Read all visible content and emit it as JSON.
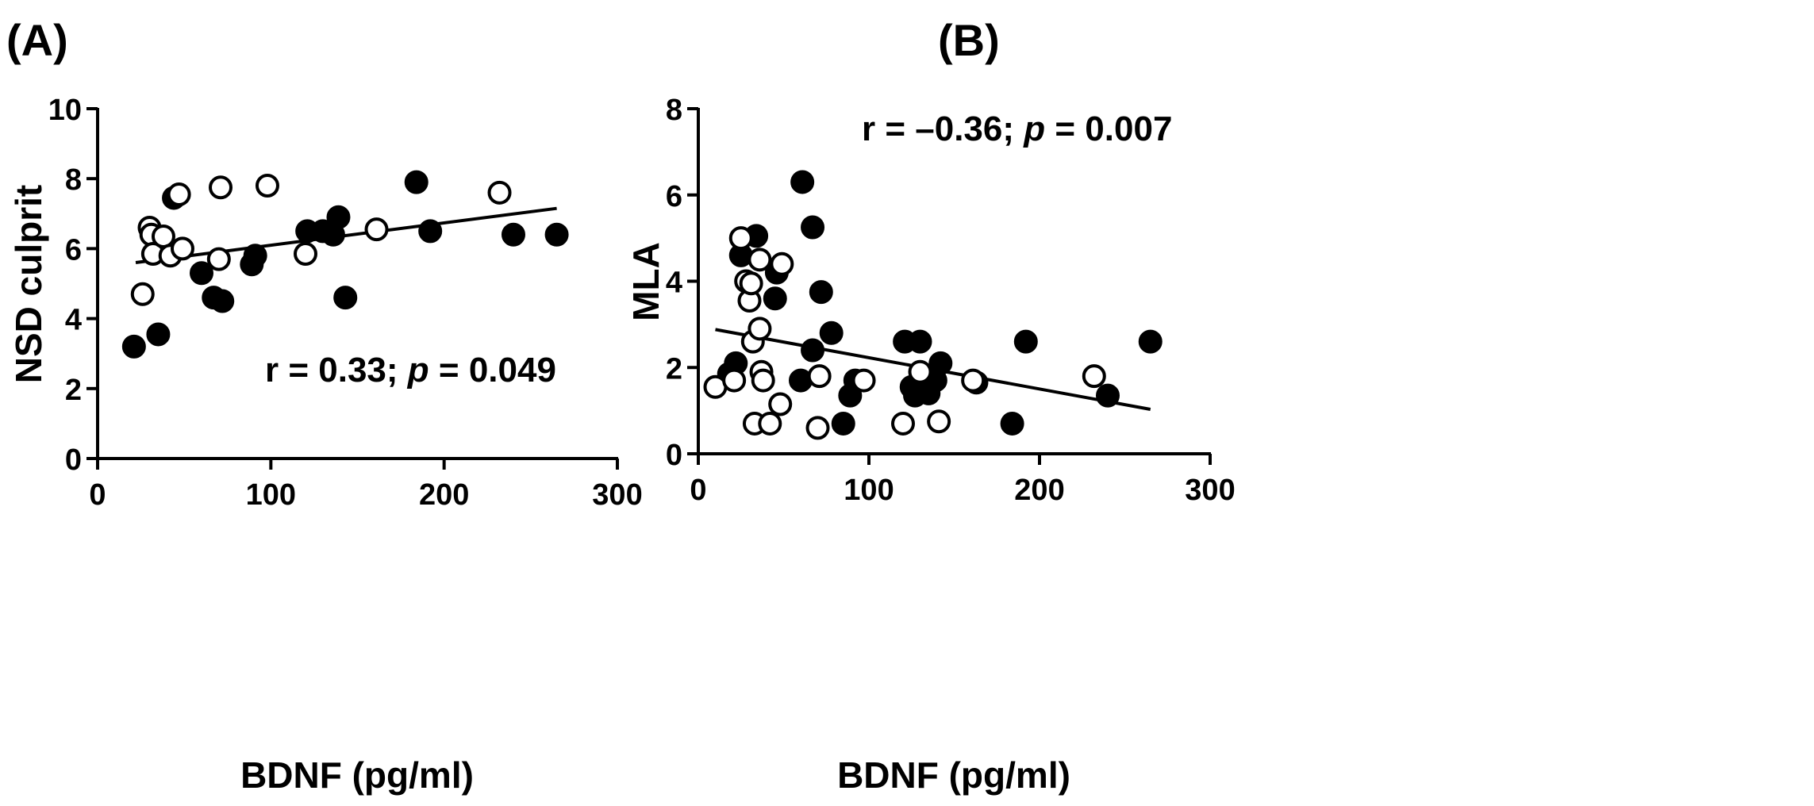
{
  "chart_data": [
    {
      "type": "scatter",
      "panel_label": "(A)",
      "xlabel": "BDNF (pg/ml)",
      "ylabel": "NSD culprit",
      "xlim": [
        0,
        300
      ],
      "ylim": [
        0,
        10
      ],
      "xticks": [
        0,
        100,
        200,
        300
      ],
      "yticks": [
        0,
        2,
        4,
        6,
        8,
        10
      ],
      "annotation": {
        "pre": "r = 0.33; ",
        "italic": "p",
        "post": " = 0.049"
      },
      "regression": {
        "x": [
          22,
          265
        ],
        "y": [
          5.6,
          7.15
        ]
      },
      "series": [
        {
          "name": "filled",
          "fill": "#000000",
          "points": [
            [
              21,
              3.2
            ],
            [
              35,
              3.55
            ],
            [
              44,
              7.45
            ],
            [
              60,
              5.3
            ],
            [
              67,
              4.6
            ],
            [
              72,
              4.5
            ],
            [
              89,
              5.55
            ],
            [
              91,
              5.8
            ],
            [
              121,
              6.5
            ],
            [
              130,
              6.5
            ],
            [
              136,
              6.4
            ],
            [
              139,
              6.9
            ],
            [
              143,
              4.6
            ],
            [
              184,
              7.9
            ],
            [
              192,
              6.5
            ],
            [
              240,
              6.4
            ],
            [
              265,
              6.4
            ]
          ]
        },
        {
          "name": "open",
          "fill": "#ffffff",
          "points": [
            [
              26,
              4.7
            ],
            [
              30,
              6.6
            ],
            [
              31,
              6.4
            ],
            [
              32,
              5.85
            ],
            [
              38,
              6.35
            ],
            [
              42,
              5.8
            ],
            [
              47,
              7.55
            ],
            [
              49,
              6.0
            ],
            [
              70,
              5.7
            ],
            [
              71,
              7.75
            ],
            [
              98,
              7.8
            ],
            [
              120,
              5.85
            ],
            [
              161,
              6.55
            ],
            [
              232,
              7.6
            ]
          ]
        }
      ]
    },
    {
      "type": "scatter",
      "panel_label": "(B)",
      "xlabel": "BDNF (pg/ml)",
      "ylabel": "MLA",
      "xlim": [
        0,
        300
      ],
      "ylim": [
        0,
        8
      ],
      "xticks": [
        0,
        100,
        200,
        300
      ],
      "yticks": [
        0,
        2,
        4,
        6,
        8
      ],
      "annotation": {
        "pre": "r = –0.36; ",
        "italic": "p",
        "post": " = 0.007"
      },
      "regression": {
        "x": [
          10,
          265
        ],
        "y": [
          2.88,
          1.03
        ]
      },
      "series": [
        {
          "name": "filled",
          "fill": "#000000",
          "points": [
            [
              18,
              1.85
            ],
            [
              22,
              2.1
            ],
            [
              25,
              4.6
            ],
            [
              34,
              5.05
            ],
            [
              45,
              3.6
            ],
            [
              46,
              4.2
            ],
            [
              60,
              1.7
            ],
            [
              61,
              6.3
            ],
            [
              67,
              2.4
            ],
            [
              67,
              5.25
            ],
            [
              72,
              3.75
            ],
            [
              78,
              2.8
            ],
            [
              85,
              0.7
            ],
            [
              89,
              1.35
            ],
            [
              92,
              1.7
            ],
            [
              121,
              2.6
            ],
            [
              125,
              1.55
            ],
            [
              127,
              1.35
            ],
            [
              130,
              2.6
            ],
            [
              135,
              1.4
            ],
            [
              139,
              1.7
            ],
            [
              142,
              2.1
            ],
            [
              163,
              1.65
            ],
            [
              184,
              0.7
            ],
            [
              192,
              2.6
            ],
            [
              240,
              1.35
            ],
            [
              265,
              2.6
            ]
          ]
        },
        {
          "name": "open",
          "fill": "#ffffff",
          "points": [
            [
              10,
              1.55
            ],
            [
              21,
              1.7
            ],
            [
              25,
              5.0
            ],
            [
              28,
              4.0
            ],
            [
              30,
              3.55
            ],
            [
              31,
              3.95
            ],
            [
              32,
              2.6
            ],
            [
              33,
              0.7
            ],
            [
              36,
              4.5
            ],
            [
              36,
              2.9
            ],
            [
              37,
              1.9
            ],
            [
              38,
              1.7
            ],
            [
              42,
              0.7
            ],
            [
              48,
              1.15
            ],
            [
              49,
              4.4
            ],
            [
              70,
              0.6
            ],
            [
              71,
              1.8
            ],
            [
              97,
              1.7
            ],
            [
              120,
              0.7
            ],
            [
              130,
              1.9
            ],
            [
              141,
              0.75
            ],
            [
              161,
              1.7
            ],
            [
              232,
              1.8
            ]
          ]
        }
      ]
    }
  ]
}
